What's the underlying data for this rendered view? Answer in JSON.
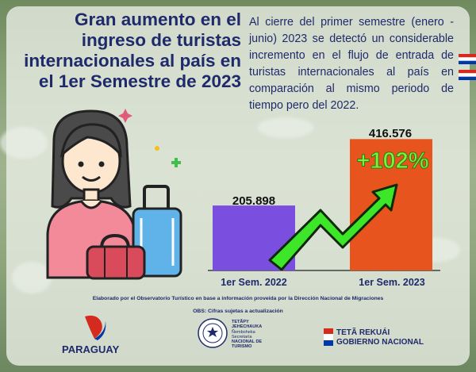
{
  "title": "Gran aumento en el ingreso de turistas internacionales al país en el 1er Semestre de 2023",
  "description": "Al cierre del primer semestre (enero - junio) 2023 se detectó un considerable incremento en el flujo de entrada de turistas internacionales al país en comparación al mismo periodo de tiempo pero del 2022.",
  "chart_data": {
    "type": "bar",
    "categories": [
      "1er Sem. 2022",
      "1er Sem. 2023"
    ],
    "values": [
      205898,
      416576
    ],
    "value_labels": [
      "205.898",
      "416.576"
    ],
    "colors": [
      "#7a4fe0",
      "#e8541e"
    ],
    "annotation": "+102%",
    "ylim": [
      0,
      430000
    ]
  },
  "footer": {
    "source": "Elaborado por el Observatorio Turístico en base a información proveida por la Dirección Nacional de Migraciones",
    "obs": "OBS: Cifras sujetas a actualización",
    "paraguay": "PARAGUAY",
    "seal_line1": "TETÃPY",
    "seal_line2": "JEHECHAUKA",
    "seal_line3": "Ñemboheka",
    "seal_line4": "Secretaría",
    "seal_line5": "NACIONAL DE",
    "seal_line6": "TURISMO",
    "gov_line1": "TETÃ REKUÁI",
    "gov_line2": "GOBIERNO NACIONAL"
  },
  "colors": {
    "title": "#1f2a6b",
    "arrow": "#3ee62a"
  }
}
